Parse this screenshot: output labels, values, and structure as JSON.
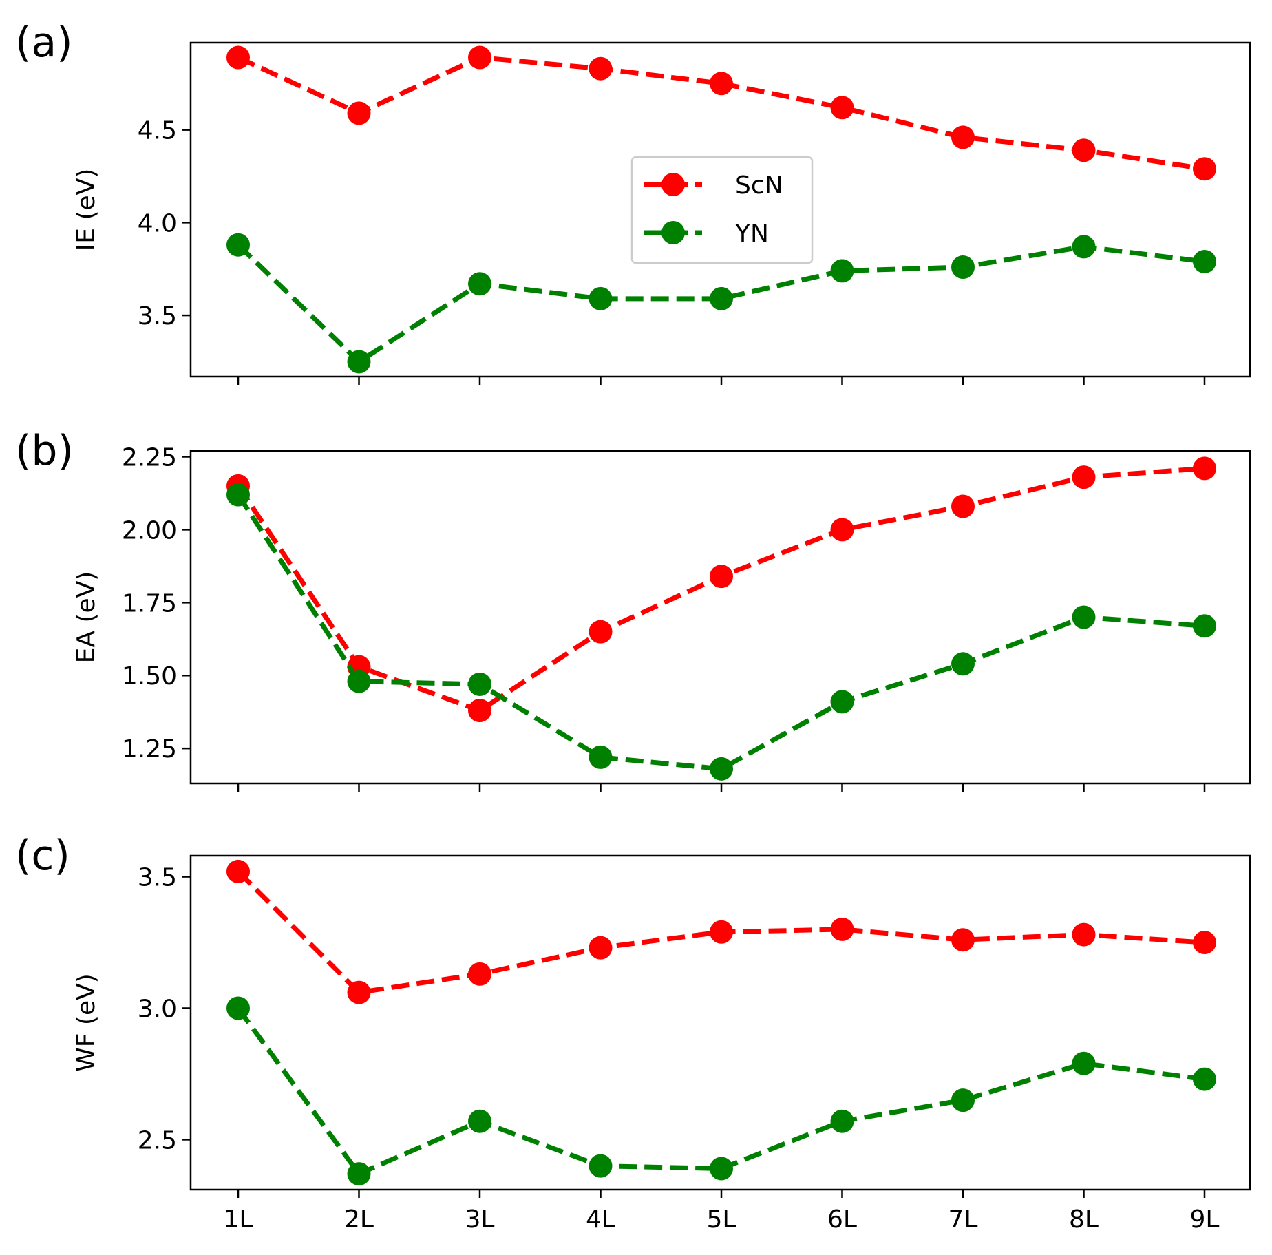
{
  "chart_data": [
    {
      "type": "line",
      "panel_label": "(a)",
      "ylabel": "IE (eV)",
      "categories": [
        "1L",
        "2L",
        "3L",
        "4L",
        "5L",
        "6L",
        "7L",
        "8L",
        "9L"
      ],
      "ylim": [
        3.17,
        4.97
      ],
      "yticks": [
        3.5,
        4.0,
        4.5
      ],
      "ytick_labels": [
        "3.5",
        "4.0",
        "4.5"
      ],
      "show_xtick_labels": false,
      "legend": "center",
      "series": [
        {
          "name": "ScN",
          "color": "#ff0000",
          "values": [
            4.89,
            4.59,
            4.89,
            4.83,
            4.75,
            4.62,
            4.46,
            4.39,
            4.29
          ]
        },
        {
          "name": "YN",
          "color": "#008000",
          "values": [
            3.88,
            3.25,
            3.67,
            3.59,
            3.59,
            3.74,
            3.76,
            3.87,
            3.79
          ]
        }
      ]
    },
    {
      "type": "line",
      "panel_label": "(b)",
      "ylabel": "EA (eV)",
      "categories": [
        "1L",
        "2L",
        "3L",
        "4L",
        "5L",
        "6L",
        "7L",
        "8L",
        "9L"
      ],
      "ylim": [
        1.13,
        2.27
      ],
      "yticks": [
        1.25,
        1.5,
        1.75,
        2.0,
        2.25
      ],
      "ytick_labels": [
        "1.25",
        "1.50",
        "1.75",
        "2.00",
        "2.25"
      ],
      "show_xtick_labels": false,
      "series": [
        {
          "name": "ScN",
          "color": "#ff0000",
          "values": [
            2.15,
            1.53,
            1.38,
            1.65,
            1.84,
            2.0,
            2.08,
            2.18,
            2.21
          ]
        },
        {
          "name": "YN",
          "color": "#008000",
          "values": [
            2.12,
            1.48,
            1.47,
            1.22,
            1.18,
            1.41,
            1.54,
            1.7,
            1.67
          ]
        }
      ]
    },
    {
      "type": "line",
      "panel_label": "(c)",
      "ylabel": "WF (eV)",
      "categories": [
        "1L",
        "2L",
        "3L",
        "4L",
        "5L",
        "6L",
        "7L",
        "8L",
        "9L"
      ],
      "ylim": [
        2.31,
        3.58
      ],
      "yticks": [
        2.5,
        3.0,
        3.5
      ],
      "ytick_labels": [
        "2.5",
        "3.0",
        "3.5"
      ],
      "show_xtick_labels": true,
      "series": [
        {
          "name": "ScN",
          "color": "#ff0000",
          "values": [
            3.52,
            3.06,
            3.13,
            3.23,
            3.29,
            3.3,
            3.26,
            3.28,
            3.25
          ]
        },
        {
          "name": "YN",
          "color": "#008000",
          "values": [
            3.0,
            2.37,
            2.57,
            2.4,
            2.39,
            2.57,
            2.65,
            2.79,
            2.73
          ]
        }
      ]
    }
  ]
}
